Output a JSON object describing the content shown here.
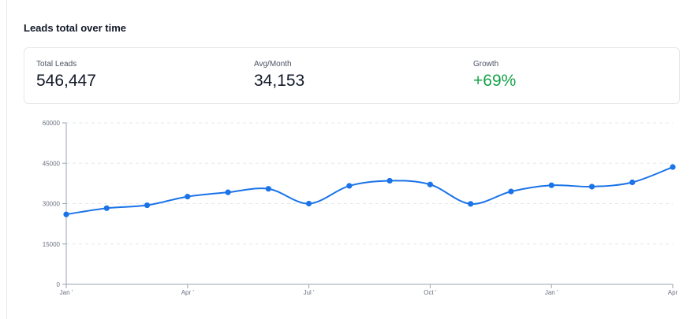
{
  "card": {
    "title": "Leads total over time"
  },
  "stats": {
    "total_leads_label": "Total Leads",
    "total_leads_value": "546,447",
    "avg_month_label": "Avg/Month",
    "avg_month_value": "34,153",
    "growth_label": "Growth",
    "growth_value": "+69%"
  },
  "colors": {
    "line": "#1a73e8",
    "growth_positive": "#16a34a",
    "grid": "#e5e7eb"
  },
  "chart_data": {
    "type": "line",
    "title": "Leads total over time",
    "xlabel": "",
    "ylabel": "",
    "ylim": [
      0,
      60000
    ],
    "yticks": [
      0,
      15000,
      30000,
      45000,
      60000
    ],
    "ytick_labels": [
      "0",
      "15000",
      "30000",
      "45000",
      "60000"
    ],
    "x_tick_labels": [
      {
        "index": 0,
        "label": "Jan '"
      },
      {
        "index": 3,
        "label": "Apr '"
      },
      {
        "index": 6,
        "label": "Jul '"
      },
      {
        "index": 9,
        "label": "Oct '"
      },
      {
        "index": 12,
        "label": "Jan '"
      },
      {
        "index": 15,
        "label": "Apr"
      }
    ],
    "grid": "horizontal dashed",
    "series": [
      {
        "values": [
          26000,
          28300,
          29400,
          32600,
          34200,
          35500,
          30000,
          36600,
          38500,
          37100,
          29900,
          34500,
          36800,
          36300,
          37900,
          43600
        ]
      }
    ]
  }
}
